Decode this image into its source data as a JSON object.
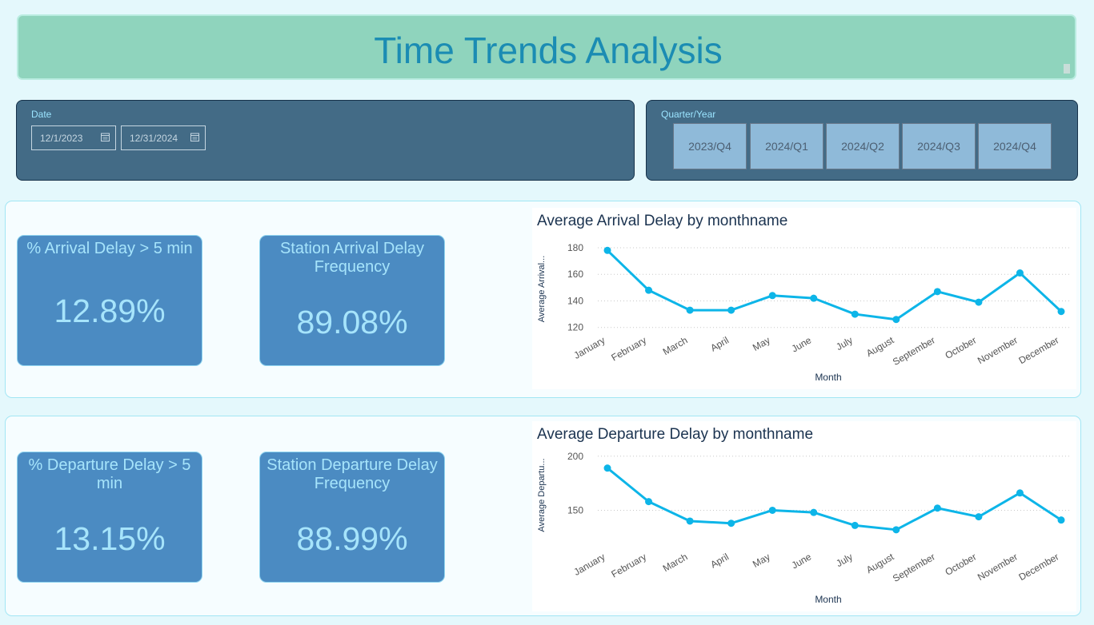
{
  "header": {
    "title": "Time Trends Analysis"
  },
  "date_slicer": {
    "label": "Date",
    "start": "12/1/2023",
    "end": "12/31/2024"
  },
  "quarter_slicer": {
    "label": "Quarter/Year",
    "options": [
      "2023/Q4",
      "2024/Q1",
      "2024/Q2",
      "2024/Q3",
      "2024/Q4"
    ]
  },
  "arrival": {
    "kpi_pct": {
      "title": "% Arrival Delay > 5 min",
      "value": "12.89%"
    },
    "kpi_freq": {
      "title": "Station Arrival Delay Frequency",
      "value": "89.08%"
    }
  },
  "departure": {
    "kpi_pct": {
      "title": "% Departure Delay > 5 min",
      "value": "13.15%"
    },
    "kpi_freq": {
      "title": "Station Departure Delay Frequency",
      "value": "88.99%"
    }
  },
  "colors": {
    "line": "#0db5e8",
    "card": "#4b8bc2",
    "card_text": "#a6e4fb",
    "title_text": "#1b8cb3"
  },
  "chart_data": [
    {
      "type": "line",
      "title": "Average Arrival Delay by monthname",
      "xlabel": "Month",
      "ylabel": "Average Arrival...",
      "categories": [
        "January",
        "February",
        "March",
        "April",
        "May",
        "June",
        "July",
        "August",
        "September",
        "October",
        "November",
        "December"
      ],
      "values": [
        178,
        148,
        133,
        133,
        144,
        142,
        130,
        126,
        147,
        139,
        161,
        132
      ],
      "ylim": [
        115,
        183
      ],
      "yticks": [
        120,
        140,
        160,
        180
      ],
      "grid": true
    },
    {
      "type": "line",
      "title": "Average Departure Delay by monthname",
      "xlabel": "Month",
      "ylabel": "Average Departu...",
      "categories": [
        "January",
        "February",
        "March",
        "April",
        "May",
        "June",
        "July",
        "August",
        "September",
        "October",
        "November",
        "December"
      ],
      "values": [
        189,
        158,
        140,
        138,
        150,
        148,
        136,
        132,
        152,
        144,
        166,
        141
      ],
      "ylim": [
        123,
        205
      ],
      "yticks": [
        150,
        200
      ],
      "grid": true
    }
  ]
}
